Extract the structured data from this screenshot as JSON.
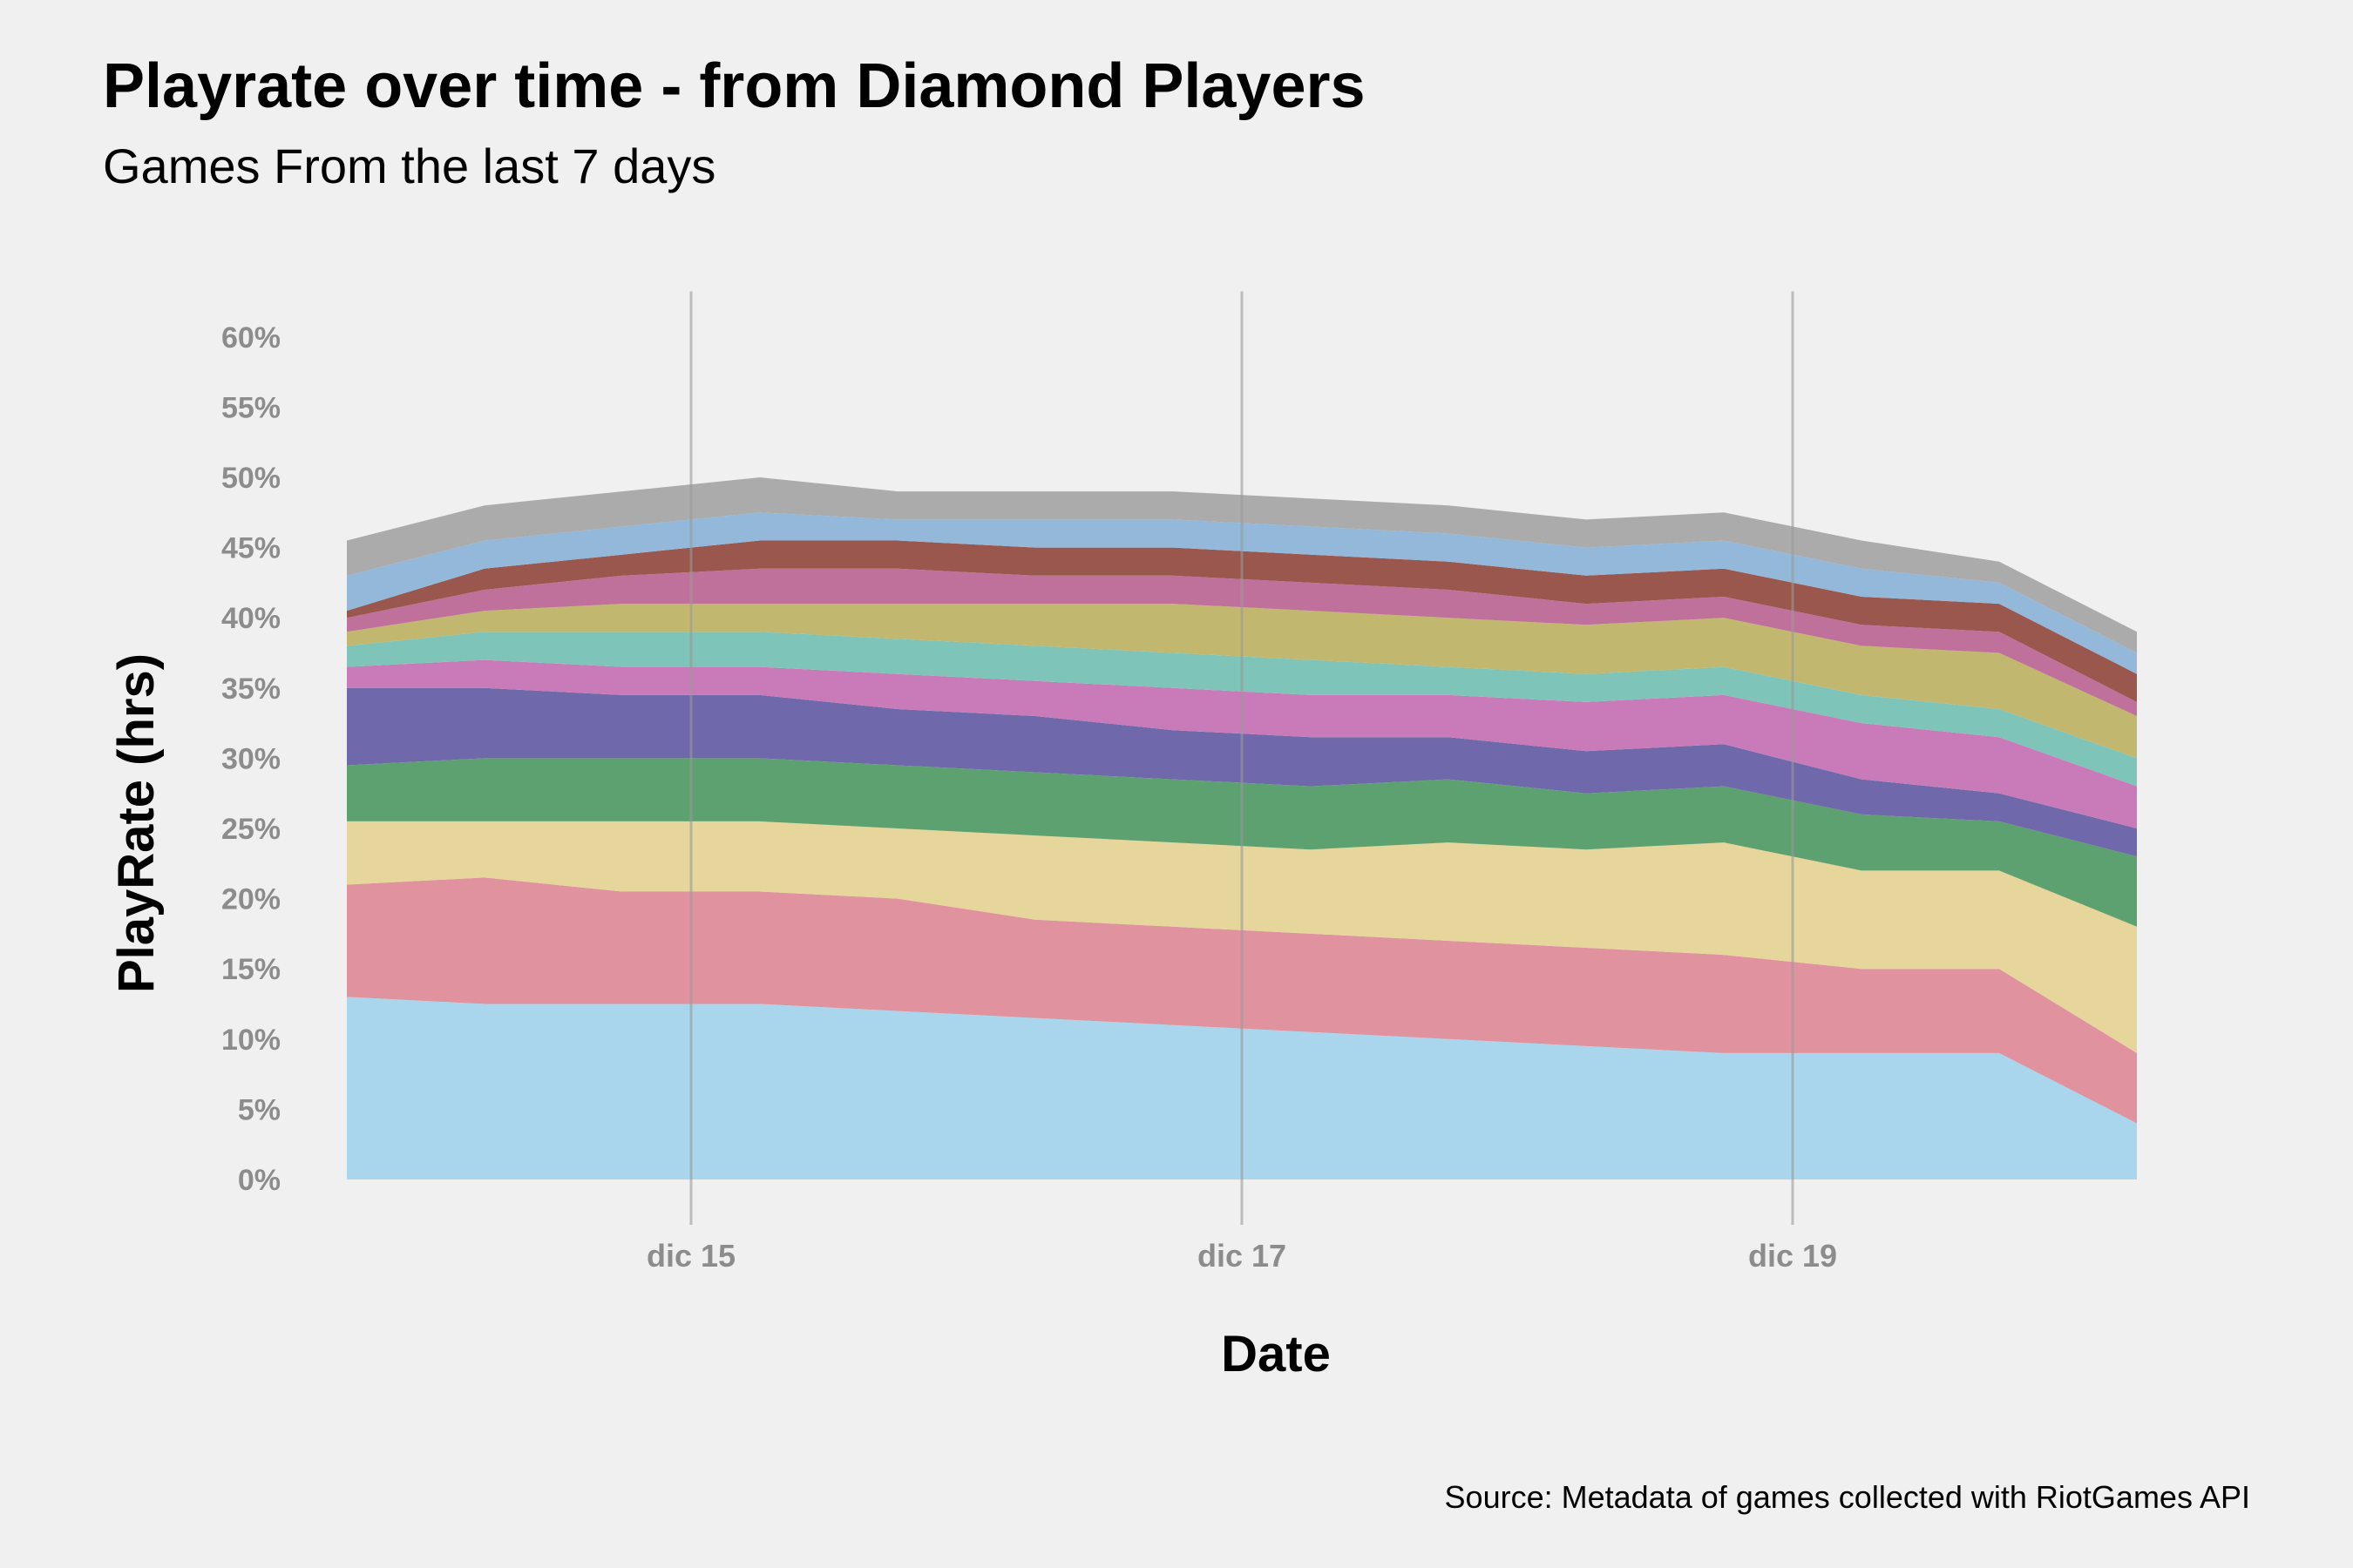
{
  "title": "Playrate over time - from Diamond Players",
  "subtitle": "Games From the last 7 days",
  "caption": "Source: Metadata of games collected with RiotGames API",
  "chart_data": {
    "type": "area",
    "stacked": true,
    "xlabel": "Date",
    "ylabel": "PlayRate (hrs)",
    "x_ticks": [
      "dic 15",
      "dic 17",
      "dic 19"
    ],
    "x_tick_positions": [
      1.25,
      3.25,
      5.25
    ],
    "x_range": [
      0,
      6.5
    ],
    "ylim": [
      0,
      62
    ],
    "y_ticks": [
      0,
      5,
      10,
      15,
      20,
      25,
      30,
      35,
      40,
      45,
      50,
      55,
      60
    ],
    "y_tick_labels": [
      "0%",
      "5%",
      "10%",
      "15%",
      "20%",
      "25%",
      "30%",
      "35%",
      "40%",
      "45%",
      "50%",
      "55%",
      "60%"
    ],
    "grid": "vertical major only",
    "legend": "none",
    "x": [
      0,
      0.5,
      1,
      1.5,
      2,
      2.5,
      3,
      3.5,
      4,
      4.5,
      5,
      5.5,
      6,
      6.5
    ],
    "series": [
      {
        "color": "#a9d6ec",
        "values": [
          13,
          12.5,
          12.5,
          12.5,
          12,
          11.5,
          11,
          10.5,
          10,
          9.5,
          9,
          9,
          9,
          4
        ]
      },
      {
        "color": "#e0939f",
        "values": [
          8,
          9,
          8,
          8,
          8,
          7,
          7,
          7,
          7,
          7,
          7,
          6,
          6,
          5
        ]
      },
      {
        "color": "#e6d69b",
        "values": [
          4.5,
          4,
          5,
          5,
          5,
          6,
          6,
          6,
          7,
          7,
          8,
          7,
          7,
          9
        ]
      },
      {
        "color": "#5ea170",
        "values": [
          4,
          4.5,
          4.5,
          4.5,
          4.5,
          4.5,
          4.5,
          4.5,
          4.5,
          4,
          4,
          4,
          3.5,
          5
        ]
      },
      {
        "color": "#6f68aa",
        "values": [
          5.5,
          5,
          4.5,
          4.5,
          4,
          4,
          3.5,
          3.5,
          3,
          3,
          3,
          2.5,
          2,
          2
        ]
      },
      {
        "color": "#c97ab8",
        "values": [
          1.5,
          2,
          2,
          2,
          2.5,
          2.5,
          3,
          3,
          3,
          3.5,
          3.5,
          4,
          4,
          3
        ]
      },
      {
        "color": "#7fc4b8",
        "values": [
          1.5,
          2,
          2.5,
          2.5,
          2.5,
          2.5,
          2.5,
          2.5,
          2,
          2,
          2,
          2,
          2,
          2
        ]
      },
      {
        "color": "#c2b76f",
        "values": [
          1,
          1.5,
          2,
          2,
          2.5,
          3,
          3.5,
          3.5,
          3.5,
          3.5,
          3.5,
          3.5,
          4,
          3
        ]
      },
      {
        "color": "#c0719b",
        "values": [
          1,
          1.5,
          2,
          2.5,
          2.5,
          2,
          2,
          2,
          2,
          1.5,
          1.5,
          1.5,
          1.5,
          1
        ]
      },
      {
        "color": "#99574e",
        "values": [
          0.5,
          1.5,
          1.5,
          2,
          2,
          2,
          2,
          2,
          2,
          2,
          2,
          2,
          2,
          2
        ]
      },
      {
        "color": "#93b8da",
        "values": [
          2.5,
          2,
          2,
          2,
          1.5,
          2,
          2,
          2,
          2,
          2,
          2,
          2,
          1.5,
          1.5
        ]
      },
      {
        "color": "#ababab",
        "values": [
          2.5,
          2.5,
          2.5,
          2.5,
          2,
          2,
          2,
          2,
          2,
          2,
          2,
          2,
          1.5,
          1.5
        ]
      }
    ]
  }
}
